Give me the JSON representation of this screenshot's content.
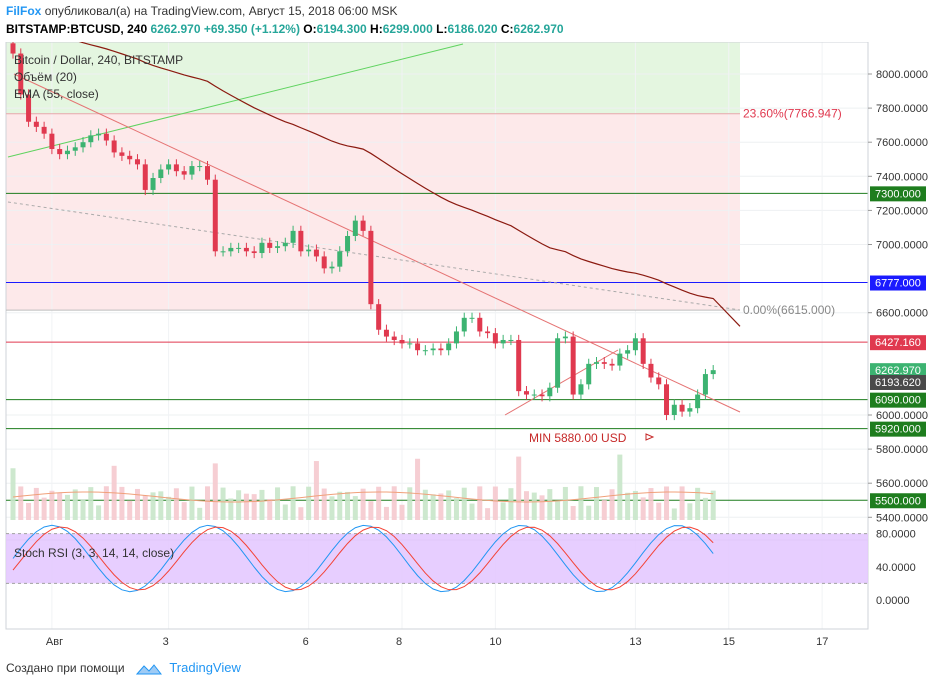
{
  "header": {
    "brand": "FilFox",
    "published_text": "опубликовал(а) на TradingView.com, Август 15, 2018 06:00 MSK",
    "symbol": "BITSTAMP:BTCUSD, 240",
    "last": "6262.970",
    "change": "+69.350 (+1.12%)",
    "o_label": "O:",
    "o": "6194.300",
    "h_label": "H:",
    "h": "6299.000",
    "l_label": "L:",
    "l": "6186.020",
    "c_label": "C:",
    "c": "6262.970"
  },
  "legend": {
    "title": "Bitcoin / Dollar, 240, BITSTAMP",
    "volume": "Объём (20)",
    "ema": "EMA (55, close)"
  },
  "stoch_label": "Stoch RSI (3, 3, 14, 14, close)",
  "footer": {
    "created_with": "Создано при помощи",
    "brand": "TradingView"
  },
  "colors": {
    "up": "#3cb371",
    "down": "#e0394f",
    "ema": "#8b1a10",
    "fib_zone": "#fde9ea",
    "green_zone": "#e4f6e0",
    "stoch_band": "#e3c6ff",
    "k_line": "#2196f3",
    "d_line": "#f44336"
  },
  "annotations": {
    "fib_236": "23.60%(7766.947)",
    "fib_0": "0.00%(6615.000)",
    "min_label": "MIN 5880.00 USD"
  },
  "chart_data": {
    "type": "candlestick",
    "title": "Bitcoin / Dollar, 240, BITSTAMP",
    "y_range": [
      5300,
      8200
    ],
    "y_ticks": [
      "8000.0000",
      "7800.0000",
      "7600.0000",
      "7400.0000",
      "7200.0000",
      "7000.0000",
      "6600.0000",
      "6000.0000",
      "5800.0000",
      "5600.0000",
      "5400.0000"
    ],
    "y_tick_values": [
      8000,
      7800,
      7600,
      7400,
      7200,
      7000,
      6600,
      6000,
      5800,
      5600,
      5400
    ],
    "x_ticks": [
      {
        "label": "Авг",
        "index": 5
      },
      {
        "label": "3",
        "index": 20
      },
      {
        "label": "6",
        "index": 38
      },
      {
        "label": "8",
        "index": 50
      },
      {
        "label": "10",
        "index": 62
      },
      {
        "label": "13",
        "index": 80
      },
      {
        "label": "15",
        "index": 92
      },
      {
        "label": "17",
        "index": 104
      }
    ],
    "price_tags": [
      {
        "value": 7300,
        "text": "7300.000",
        "color": "#1e7d1e"
      },
      {
        "value": 6777,
        "text": "6777.000",
        "color": "#1a1aff"
      },
      {
        "value": 6427.16,
        "text": "6427.160",
        "color": "#e0394f"
      },
      {
        "value": 6262.97,
        "text": "6262.970",
        "color": "#3cb371"
      },
      {
        "value": 6193.62,
        "text": "6193.620",
        "color": "#4a4a4a"
      },
      {
        "value": 6090,
        "text": "6090.000",
        "color": "#1e7d1e"
      },
      {
        "value": 5920,
        "text": "5920.000",
        "color": "#1e7d1e"
      },
      {
        "value": 5500,
        "text": "5500.000",
        "color": "#1e7d1e"
      }
    ],
    "closes": [
      8120,
      7880,
      7720,
      7690,
      7650,
      7560,
      7530,
      7550,
      7570,
      7600,
      7640,
      7650,
      7610,
      7540,
      7520,
      7500,
      7470,
      7320,
      7390,
      7440,
      7470,
      7430,
      7410,
      7460,
      7460,
      7380,
      6960,
      6960,
      6980,
      6980,
      6960,
      6950,
      7010,
      6980,
      6990,
      7010,
      7080,
      6960,
      6970,
      6930,
      6860,
      6870,
      6960,
      7050,
      7140,
      7080,
      6650,
      6500,
      6460,
      6440,
      6420,
      6420,
      6380,
      6380,
      6390,
      6380,
      6420,
      6490,
      6570,
      6570,
      6490,
      6480,
      6420,
      6440,
      6440,
      6140,
      6120,
      6120,
      6110,
      6160,
      6450,
      6460,
      6120,
      6180,
      6300,
      6310,
      6300,
      6290,
      6360,
      6380,
      6450,
      6300,
      6220,
      6180,
      6000,
      6060,
      6020,
      6040,
      6120,
      6240,
      6263
    ]
  },
  "stoch_ticks": [
    "80.0000",
    "40.0000",
    "0.0000"
  ]
}
